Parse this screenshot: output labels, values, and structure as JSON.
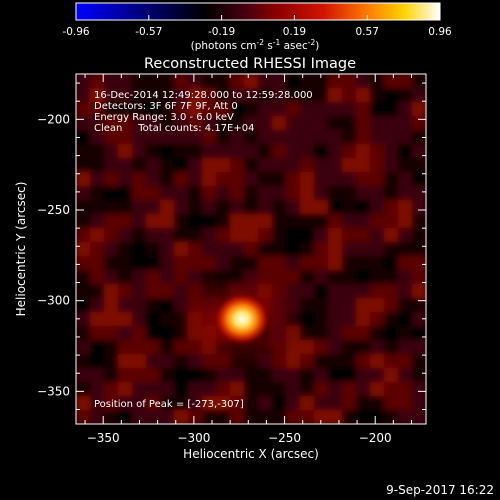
{
  "colorbar": {
    "ticks": [
      "-0.96",
      "-0.57",
      "-0.19",
      "0.19",
      "0.57",
      "0.96"
    ],
    "unit_parts": [
      "(photons cm",
      "-2",
      " s",
      "-1",
      " asec",
      "-2",
      ")"
    ],
    "stops": [
      "#0000ff",
      "#000000",
      "#3a0010",
      "#8a0000",
      "#d31400",
      "#ff7a00",
      "#ffd200",
      "#ffffff"
    ]
  },
  "chart_data": {
    "type": "heatmap",
    "title": "Reconstructed RHESSI Image",
    "xlabel": "Heliocentric X (arcsec)",
    "ylabel": "Heliocentric Y (arcsec)",
    "xlim": [
      -365,
      -172
    ],
    "ylim": [
      -368,
      -175
    ],
    "xticks": [
      -350,
      -300,
      -250,
      -200
    ],
    "yticks": [
      -350,
      -300,
      -250,
      -200
    ],
    "peak": {
      "x": -273,
      "y": -307
    },
    "annotations": [
      "16-Dec-2014 12:49:28.000 to 12:59:28.000",
      "Detectors: 3F 6F 7F 9F, Att 0",
      "Energy Range: 3.0 - 6.0 keV",
      "Clean     Total counts: 4.17E+04"
    ],
    "peak_label": "Position of Peak = [-273,-307]"
  },
  "footer": {
    "timestamp": "9-Sep-2017 16:22"
  }
}
